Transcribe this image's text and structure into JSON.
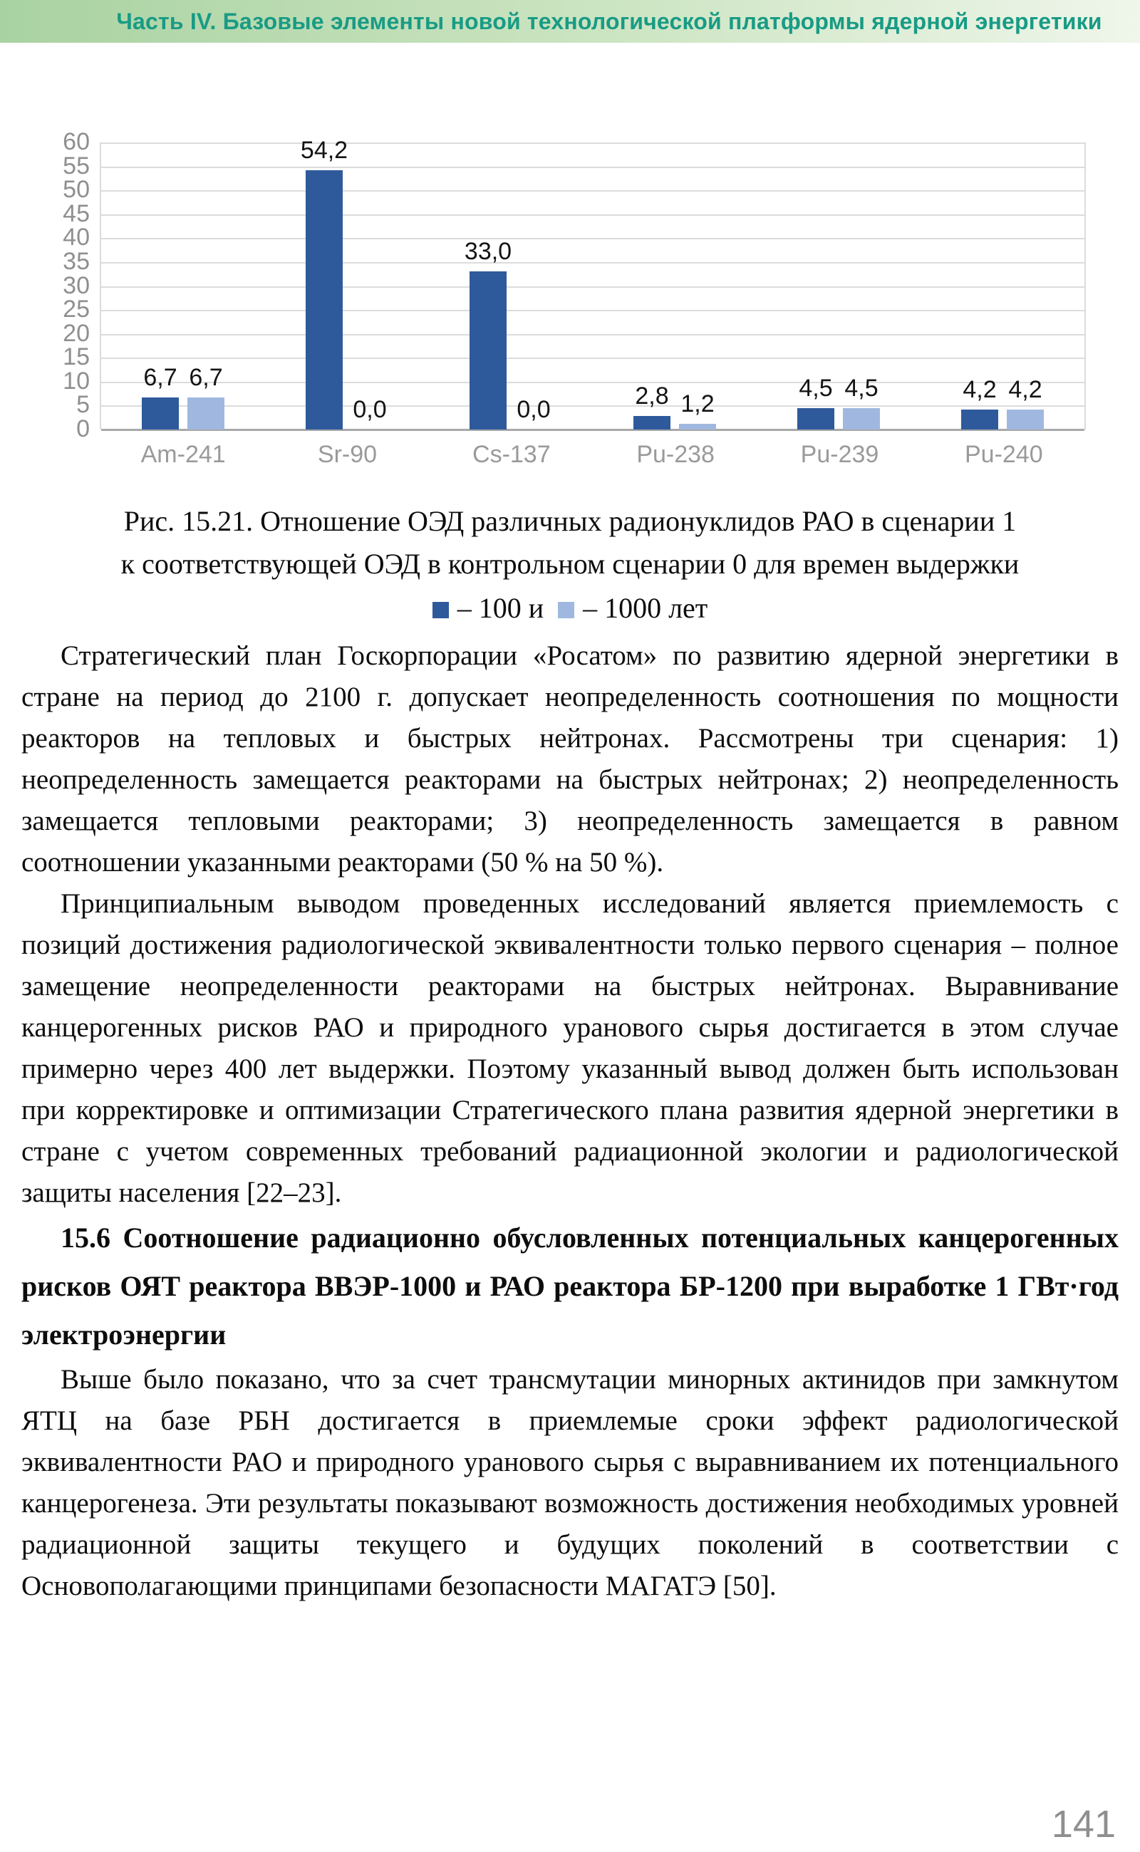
{
  "header": {
    "title": "Часть IV. Базовые элементы новой технологической платформы ядерной энергетики"
  },
  "chart_data": {
    "type": "bar",
    "title": "",
    "xlabel": "",
    "ylabel": "",
    "categories": [
      "Am-241",
      "Sr-90",
      "Cs-137",
      "Pu-238",
      "Pu-239",
      "Pu-240"
    ],
    "series": [
      {
        "name": "100 лет",
        "color": "#2E5A9B",
        "values": [
          6.7,
          54.2,
          33.0,
          2.8,
          4.5,
          4.2
        ],
        "value_labels": [
          "6,7",
          "54,2",
          "33,0",
          "2,8",
          "4,5",
          "4,2"
        ]
      },
      {
        "name": "1000 лет",
        "color": "#A0B8DF",
        "values": [
          6.7,
          0.0,
          0.0,
          1.2,
          4.5,
          4.2
        ],
        "value_labels": [
          "6,7",
          "0,0",
          "0,0",
          "1,2",
          "4,5",
          "4,2"
        ]
      }
    ],
    "ylim": [
      0,
      60
    ],
    "ytick_step": 5,
    "yticks": [
      60,
      55,
      50,
      45,
      40,
      35,
      30,
      25,
      20,
      15,
      10,
      5,
      0
    ],
    "grid": true,
    "legend_position": "in-caption"
  },
  "figure_caption": {
    "line1": "Рис. 15.21. Отношение ОЭД различных радионуклидов РАО в сценарии 1",
    "line2": "к соответствующей ОЭД в контрольном сценарии 0 для времен выдержки",
    "legend_label_1": "– 100",
    "legend_conjunction": "и",
    "legend_label_2": "– 1000 лет"
  },
  "body": {
    "p1": "Стратегический план Госкорпорации «Росатом» по развитию ядерной энергетики в стране на период до 2100 г. допускает неопределенность соотношения по мощности реакторов на тепловых и быстрых нейтронах. Рассмотрены три сценария: 1) неопределенность замещается реакторами на быстрых нейтронах; 2) неопределенность замещается тепловыми реакторами; 3) неопределенность замещается в равном соотношении указанными реакторами (50 % на 50 %).",
    "p2": "Принципиальным выводом проведенных исследований является приемлемость с позиций достижения радиологической эквивалентности только первого сценария – полное замещение неопределенности реакторами на быстрых нейтронах. Выравнивание канцерогенных рисков РАО и природного уранового сырья достигается в этом случае примерно через 400 лет выдержки. Поэтому указанный вывод должен быть использован при корректировке и оптимизации Стратегического плана развития ядерной энергетики в стране с учетом современных требований радиационной экологии и радиологической защиты населения [22–23].",
    "section_heading": "15.6 Соотношение радиационно обусловленных потенциальных канцерогенных рисков ОЯТ реактора ВВЭР-1000 и РАО реактора БР-1200 при выработке 1 ГВт·год электроэнергии",
    "p3": "Выше было показано, что за счет трансмутации минорных актинидов при замкнутом ЯТЦ на базе РБН достигается в приемлемые сроки эффект радиологической эквивалентности РАО и природного уранового сырья с выравниванием их потенциального канцерогенеза. Эти результаты показывают возможность достижения необходимых уровней радиационной защиты текущего и будущих поколений в соответствии с Основополагающими принципами безопасности МАГАТЭ [50]."
  },
  "page_number": "141",
  "colors": {
    "header_text": "#199B85",
    "header_gradient_left": "#A9D2A1",
    "header_gradient_mid": "#CDE5C3",
    "header_gradient_right": "#EFF6EB",
    "series_100": "#2E5A9B",
    "series_1000": "#A0B8DF",
    "axis_label": "#8F8F8F",
    "x_label": "#9A9A9A",
    "gridline": "#DCDCDC",
    "baseline": "#A9A9A9",
    "value_label": "#141414",
    "page_number": "#8F8F8F"
  }
}
